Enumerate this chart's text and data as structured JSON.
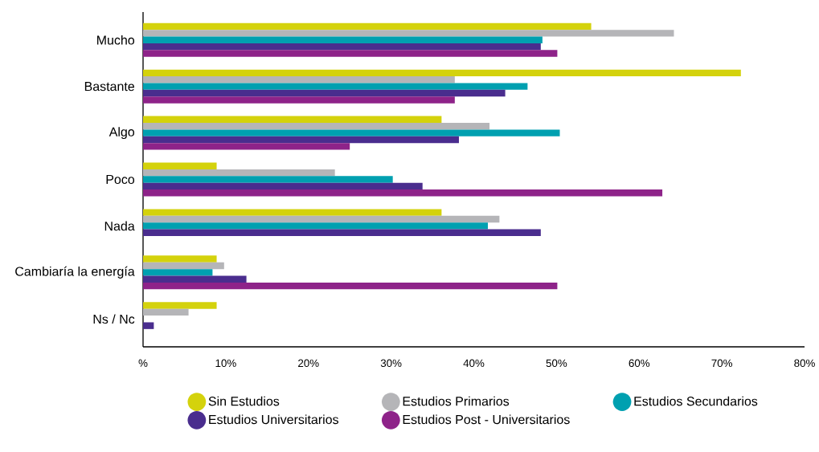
{
  "chart_data": {
    "type": "bar",
    "orientation": "horizontal",
    "categories": [
      "Mucho",
      "Bastante",
      "Algo",
      "Poco",
      "Nada",
      "Cambiaría la energía",
      "Ns / Nc"
    ],
    "series": [
      {
        "name": "Sin Estudios",
        "color": "#d4d20c",
        "values": [
          54.2,
          72.3,
          36.1,
          8.9,
          36.1,
          8.9,
          8.9
        ]
      },
      {
        "name": "Estudios Primarios",
        "color": "#b5b5b8",
        "values": [
          64.2,
          37.7,
          41.9,
          23.2,
          43.1,
          9.8,
          5.5
        ]
      },
      {
        "name": "Estudios Secundarios",
        "color": "#00a0b0",
        "values": [
          48.3,
          46.5,
          50.4,
          30.2,
          41.7,
          8.4,
          null
        ]
      },
      {
        "name": "Estudios Universitarios",
        "color": "#4a2d8e",
        "values": [
          48.1,
          43.8,
          38.2,
          33.8,
          48.1,
          12.5,
          1.3
        ]
      },
      {
        "name": "Estudios Post - Universitarios",
        "color": "#8e2389",
        "values": [
          50.1,
          37.7,
          25.0,
          62.8,
          null,
          50.1,
          null
        ]
      }
    ],
    "xlim": [
      0,
      80
    ],
    "xticks": [
      {
        "value": 0,
        "label": "%"
      },
      {
        "value": 10,
        "label": "10%"
      },
      {
        "value": 20,
        "label": "20%"
      },
      {
        "value": 30,
        "label": "30%"
      },
      {
        "value": 40,
        "label": "40%"
      },
      {
        "value": 50,
        "label": "50%"
      },
      {
        "value": 60,
        "label": "60%"
      },
      {
        "value": 70,
        "label": "70%"
      },
      {
        "value": 80,
        "label": "80%"
      }
    ],
    "legend": "bottom"
  }
}
